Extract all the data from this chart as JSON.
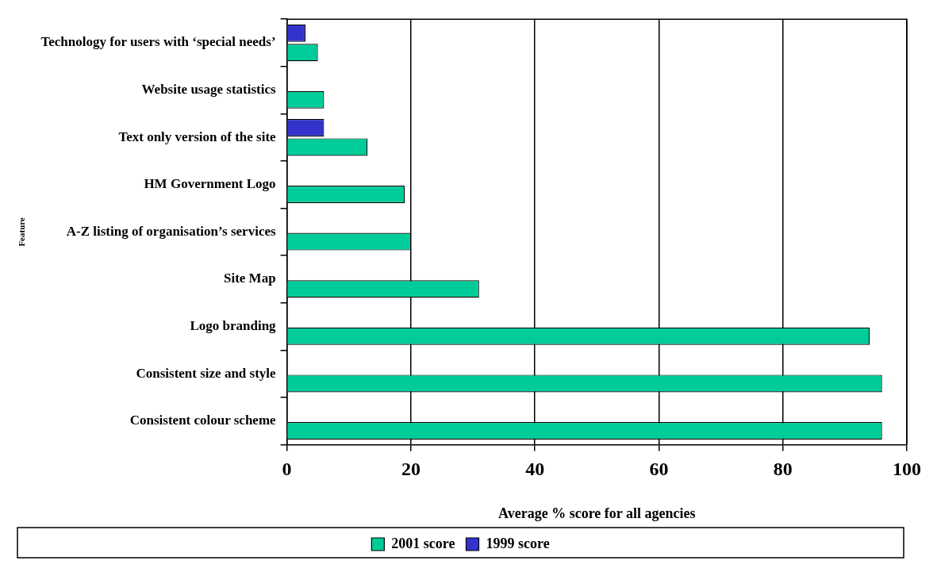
{
  "chart_data": {
    "type": "bar",
    "orientation": "horizontal",
    "xlabel": "Average % score for all agencies",
    "ylabel": "Feature",
    "categories": [
      "Technology for users with ‘special needs’",
      "Website usage statistics",
      "Text only version of the site",
      "HM Government Logo",
      "A-Z listing of organisation’s services",
      "Site Map",
      "Logo branding",
      "Consistent size and style",
      "Consistent colour scheme"
    ],
    "series": [
      {
        "name": "2001 score",
        "color": "#00cc99",
        "values": [
          5,
          6,
          13,
          19,
          20,
          31,
          94,
          96,
          96
        ]
      },
      {
        "name": "1999 score",
        "color": "#3333cc",
        "values": [
          3,
          null,
          6,
          null,
          null,
          null,
          null,
          null,
          null
        ]
      }
    ],
    "xlim": [
      0,
      100
    ],
    "xticks": [
      0,
      20,
      40,
      60,
      80,
      100
    ],
    "grid": "x",
    "legend": "bottom"
  }
}
